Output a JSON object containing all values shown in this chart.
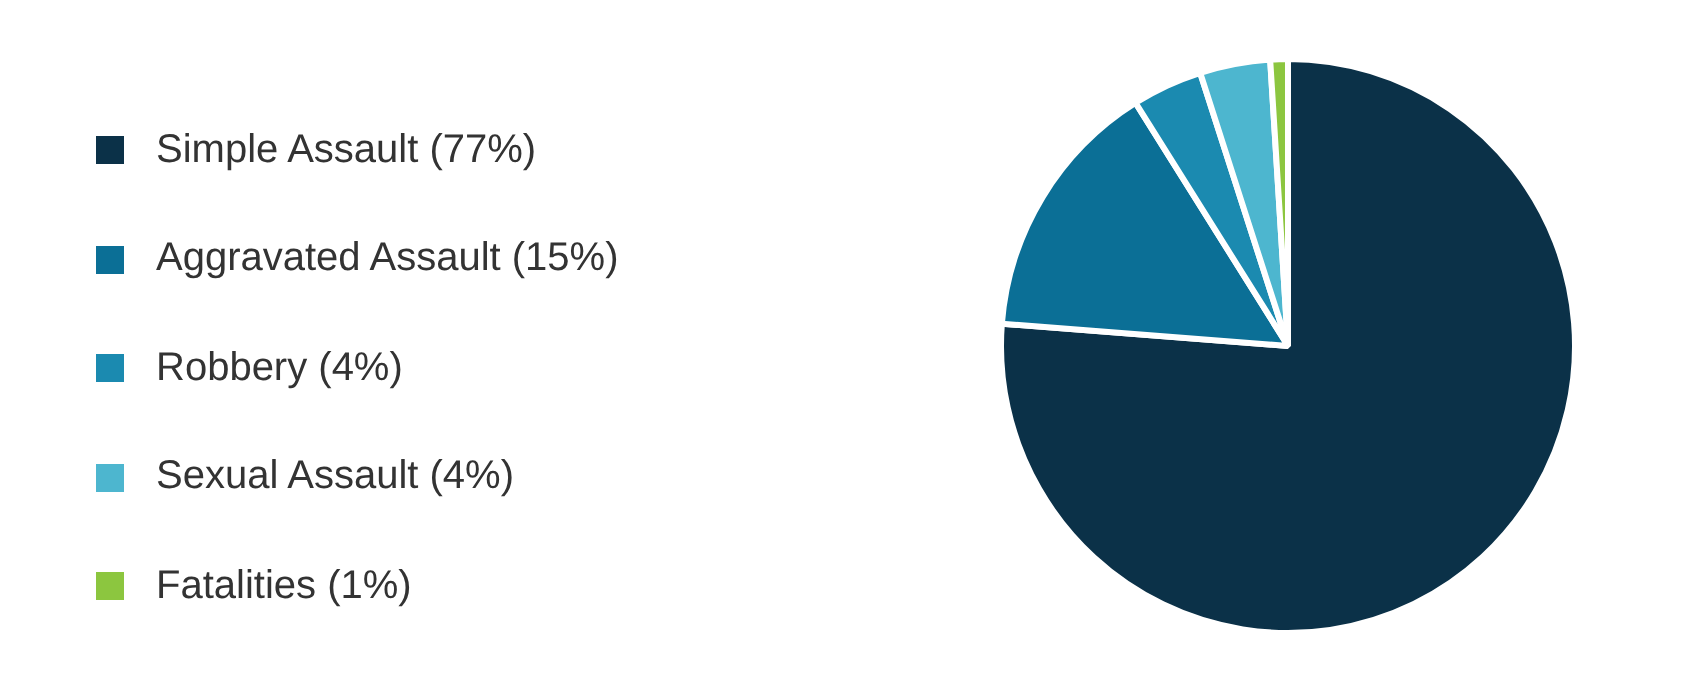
{
  "chart_data": {
    "type": "pie",
    "categories": [
      "Simple Assault (77%)",
      "Aggravated Assault (15%)",
      "Robbery (4%)",
      "Sexual Assault (4%)",
      "Fatalities (1%)"
    ],
    "values": [
      77,
      15,
      4,
      4,
      1
    ],
    "colors": [
      "#0b3148",
      "#0b6f96",
      "#1b8ab0",
      "#4db6cf",
      "#8cc63f"
    ],
    "legend": "left"
  }
}
